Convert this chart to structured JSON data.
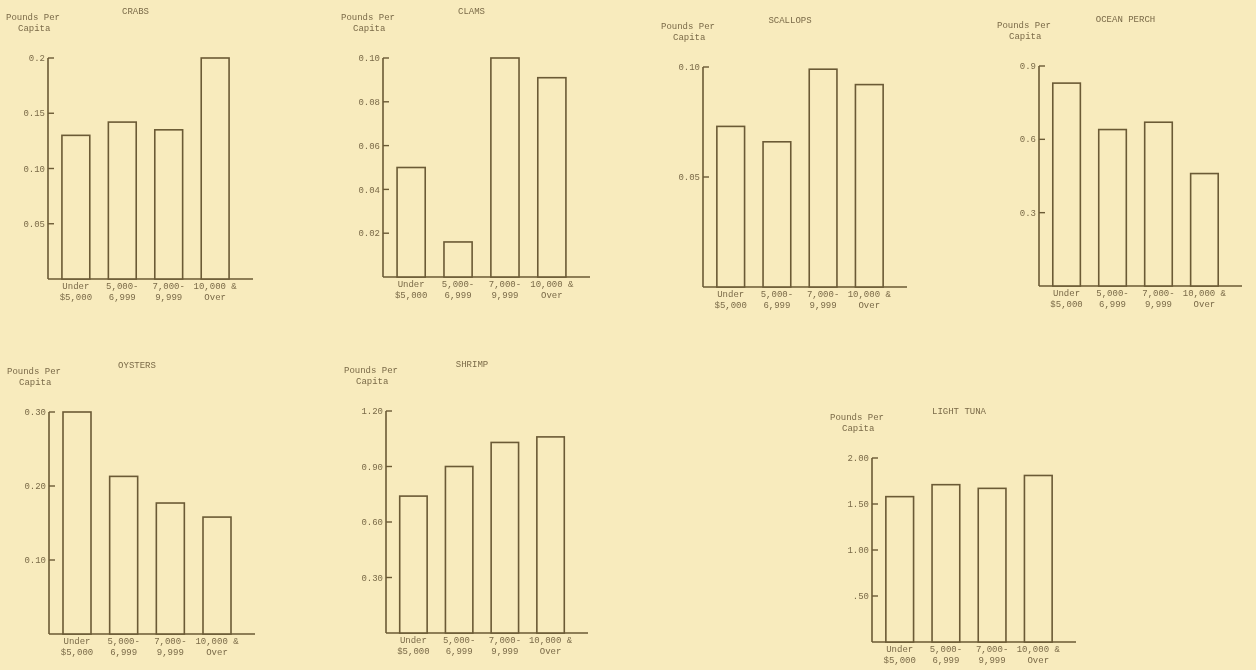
{
  "chart_data": [
    {
      "type": "bar",
      "title": "CRABS",
      "ylabel": "Pounds Per Capita",
      "categories": [
        "Under $5,000",
        "5,000- 6,999",
        "7,000- 9,999",
        "10,000 & Over"
      ],
      "values": [
        0.13,
        0.142,
        0.135,
        0.2
      ],
      "color": "#6b5a35",
      "ylim": [
        0,
        0.2
      ],
      "yticks": [
        {
          "value": 0.05,
          "label": "0.05"
        },
        {
          "value": 0.1,
          "label": "0.10"
        },
        0.15,
        0.2
      ]
    },
    {
      "type": "bar",
      "title": "CLAMS",
      "ylabel": "Pounds Per Capita",
      "categories": [
        "Under $5,000",
        "5,000- 6,999",
        "7,000- 9,999",
        "10,000 & Over"
      ],
      "values": [
        0.05,
        0.016,
        0.1,
        0.091
      ],
      "color": "#6b5a35",
      "ylim": [
        0,
        0.1
      ],
      "yticks": [
        0.02,
        0.04,
        0.06,
        0.08,
        {
          "value": 0.1,
          "label": "0.10"
        }
      ]
    },
    {
      "type": "bar",
      "title": "SCALLOPS",
      "ylabel": "Pounds Per Capita",
      "categories": [
        "Under $5,000",
        "5,000- 6,999",
        "7,000- 9,999",
        "10,000 & Over"
      ],
      "values": [
        0.073,
        0.066,
        0.099,
        0.092
      ],
      "color": "#6b5a35",
      "ylim": [
        0,
        0.1
      ],
      "yticks": [
        0.05,
        {
          "value": 0.1,
          "label": "0.10"
        }
      ]
    },
    {
      "type": "bar",
      "title": "OCEAN PERCH",
      "ylabel": "Pounds Per Capita",
      "categories": [
        "Under $5,000",
        "5,000- 6,999",
        "7,000- 9,999",
        "10,000 & Over"
      ],
      "values": [
        0.83,
        0.64,
        0.67,
        0.46
      ],
      "color": "#6b5a35",
      "ylim": [
        0,
        0.9
      ],
      "yticks": [
        0.3,
        0.6,
        0.9
      ]
    },
    {
      "type": "bar",
      "title": "OYSTERS",
      "ylabel": "Pounds Per Capita",
      "categories": [
        "Under $5,000",
        "5,000- 6,999",
        "7,000- 9,999",
        "10,000 & Over"
      ],
      "values": [
        0.3,
        0.213,
        0.177,
        0.158
      ],
      "color": "#6b5a35",
      "ylim": [
        0,
        0.3
      ],
      "yticks": [
        {
          "value": 0.1,
          "label": "0.10"
        },
        {
          "value": 0.2,
          "label": "0.20"
        },
        {
          "value": 0.3,
          "label": "0.30"
        }
      ]
    },
    {
      "type": "bar",
      "title": "SHRIMP",
      "ylabel": "Pounds Per Capita",
      "categories": [
        "Under $5,000",
        "5,000- 6,999",
        "7,000- 9,999",
        "10,000 & Over"
      ],
      "values": [
        0.74,
        0.9,
        1.03,
        1.06
      ],
      "color": "#6b5a35",
      "ylim": [
        0,
        1.2
      ],
      "yticks": [
        {
          "value": 0.3,
          "label": "0.30"
        },
        {
          "value": 0.6,
          "label": "0.60"
        },
        {
          "value": 0.9,
          "label": "0.90"
        },
        {
          "value": 1.2,
          "label": "1.20"
        }
      ]
    },
    {
      "type": "bar",
      "title": "LIGHT TUNA",
      "ylabel": "Pounds Per Capita",
      "categories": [
        "Under $5,000",
        "5,000- 6,999",
        "7,000- 9,999",
        "10,000 & Over"
      ],
      "values": [
        1.58,
        1.71,
        1.67,
        1.81
      ],
      "color": "#6b5a35",
      "ylim": [
        0,
        2
      ],
      "yticks": [
        {
          "value": 0.5,
          "label": ".50"
        },
        {
          "value": 1,
          "label": "1.00"
        },
        {
          "value": 1.5,
          "label": "1.50"
        },
        {
          "value": 2,
          "label": "2.00"
        }
      ]
    }
  ]
}
